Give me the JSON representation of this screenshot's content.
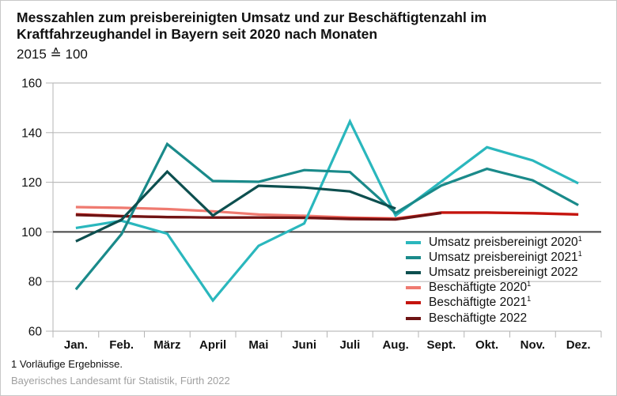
{
  "header": {
    "title_line1": "Messzahlen zum preisbereinigten Umsatz und zur Beschäftigtenzahl im",
    "title_line2": "Kraftfahrzeughandel in Bayern seit 2020 nach Monaten",
    "subtitle": "2015 ≙ 100"
  },
  "footer": {
    "footnote": "1  Vorläufige Ergebnisse.",
    "source": "Bayerisches Landesamt für Statistik, Fürth 2022"
  },
  "chart_data": {
    "type": "line",
    "title": "Messzahlen zum preisbereinigten Umsatz und zur Beschäftigtenzahl im Kraftfahrzeughandel in Bayern seit 2020 nach Monaten",
    "subtitle": "2015 ≙ 100",
    "xlabel": "",
    "ylabel": "",
    "categories": [
      "Jan.",
      "Feb.",
      "März",
      "April",
      "Mai",
      "Juni",
      "Juli",
      "Aug.",
      "Sept.",
      "Okt.",
      "Nov.",
      "Dez."
    ],
    "ylim": [
      60,
      160
    ],
    "yticks": [
      60,
      80,
      100,
      120,
      140,
      160
    ],
    "reference_line": 100,
    "grid": true,
    "legend_position": "bottom-right",
    "series": [
      {
        "name": "Umsatz preisbereinigt 2020",
        "footnote": "1",
        "color": "#2ab7bd",
        "values": [
          101.6,
          104.5,
          99.3,
          72.4,
          94.4,
          103.4,
          144.5,
          106.6,
          120.3,
          134.1,
          128.8,
          119.6
        ]
      },
      {
        "name": "Umsatz preisbereinigt 2021",
        "footnote": "1",
        "color": "#1a8a8a",
        "values": [
          76.8,
          99.1,
          135.4,
          120.5,
          120.2,
          124.9,
          124.1,
          107.6,
          118.7,
          125.4,
          120.8,
          110.8
        ]
      },
      {
        "name": "Umsatz preisbereinigt 2022",
        "footnote": "",
        "color": "#0d4f4f",
        "values": [
          96.2,
          104.9,
          124.3,
          106.6,
          118.6,
          117.9,
          116.3,
          109.4,
          null,
          null,
          null,
          null
        ]
      },
      {
        "name": "Beschäftigte 2020",
        "footnote": "1",
        "color": "#ef7a70",
        "values": [
          110.0,
          109.7,
          109.2,
          108.3,
          107.0,
          106.5,
          105.8,
          105.4,
          107.7,
          107.7,
          107.6,
          107.1
        ]
      },
      {
        "name": "Beschäftigte 2021",
        "footnote": "1",
        "color": "#c4140e",
        "values": [
          107.1,
          106.4,
          106.0,
          105.8,
          105.8,
          105.7,
          105.4,
          105.2,
          107.8,
          107.8,
          107.5,
          107.0
        ]
      },
      {
        "name": "Beschäftigte 2022",
        "footnote": "",
        "color": "#6e1414",
        "values": [
          106.8,
          106.3,
          106.0,
          105.8,
          105.8,
          105.7,
          105.2,
          105.0,
          107.6,
          null,
          null,
          null
        ]
      }
    ]
  }
}
